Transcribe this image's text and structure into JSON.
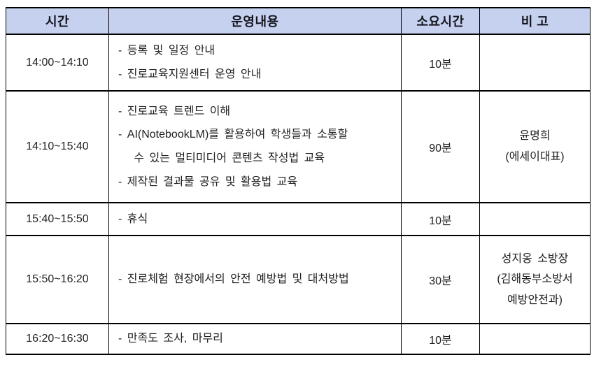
{
  "colors": {
    "header_background": "#c5d1ee",
    "header_text": "#14141e",
    "body_text": "#212121",
    "border": "#000000",
    "page_background": "#ffffff"
  },
  "table": {
    "headers": [
      "시간",
      "운영내용",
      "소요시간",
      "비 고"
    ],
    "rows": [
      {
        "time": "14:00~14:10",
        "content": "- 등록 및 일정 안내\n- 진로교육지원센터 운영 안내",
        "duration": "10분",
        "note": ""
      },
      {
        "time": "14:10~15:40",
        "content": "- 진로교육 트렌드 이해\n- AI(NotebookLM)를 활용하여 학생들과 소통할\n   수 있는 멀티미디어 콘텐츠 작성법 교육\n- 제작된 결과물 공유 및 활용법 교육",
        "duration": "90분",
        "note": "윤명희\n(에세이대표)"
      },
      {
        "time": "15:40~15:50",
        "content": "- 휴식",
        "duration": "10분",
        "note": ""
      },
      {
        "time": "15:50~16:20",
        "content": "- 진로체험 현장에서의 안전 예방법 및 대처방법",
        "duration": "30분",
        "note": "성지옹 소방장\n(김해동부소방서\n예방안전과)"
      },
      {
        "time": "16:20~16:30",
        "content": "- 만족도 조사, 마무리",
        "duration": "10분",
        "note": ""
      }
    ]
  }
}
